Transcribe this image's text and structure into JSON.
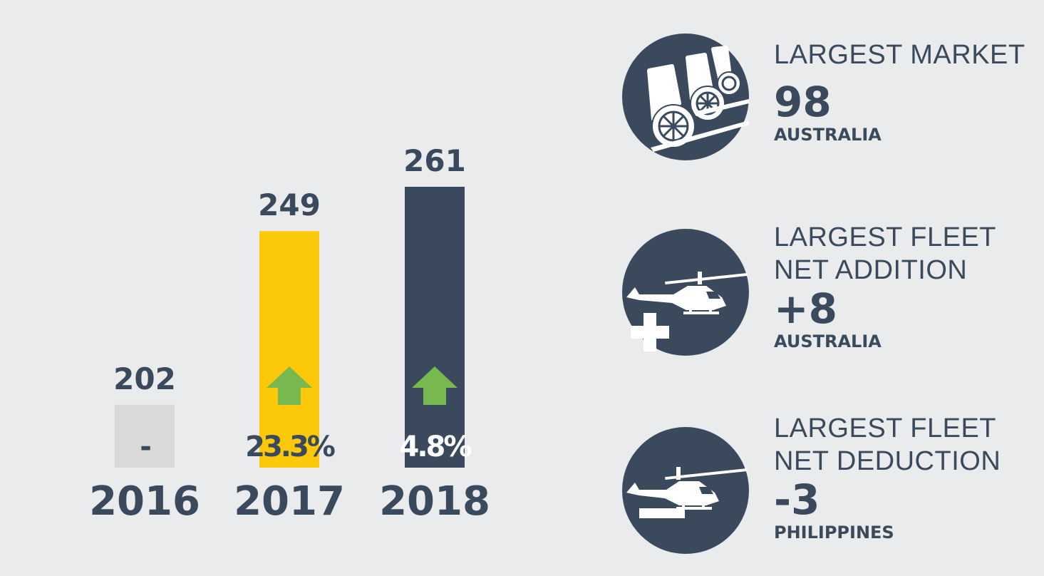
{
  "chart_data": {
    "type": "bar",
    "categories": [
      "2016",
      "2017",
      "2018"
    ],
    "values": [
      202,
      249,
      261
    ],
    "growth_labels": [
      "-",
      "23.3%",
      "4.8%"
    ],
    "growth_arrows": [
      false,
      true,
      true
    ],
    "colors": [
      "#d9d9d9",
      "#fcc80a",
      "#3a4a5c"
    ],
    "growth_label_colors": [
      "#3a4a5c",
      "#3a4a5c",
      "#ffffff"
    ],
    "arrow_color": "#77b94e",
    "text_color": "#3a4a5c",
    "ylim": [
      0,
      261
    ],
    "title": "",
    "xlabel": "",
    "ylabel": ""
  },
  "stats": [
    {
      "icon": "wheelchair-seats-icon",
      "heading": "LARGEST MARKET",
      "value": "98",
      "country": "AUSTRALIA"
    },
    {
      "icon": "helicopter-plus-icon",
      "heading": "LARGEST FLEET\nNET ADDITION",
      "value": "+8",
      "country": "AUSTRALIA"
    },
    {
      "icon": "helicopter-minus-icon",
      "heading": "LARGEST FLEET\nNET DEDUCTION",
      "value": "-3",
      "country": "PHILIPPINES"
    }
  ]
}
